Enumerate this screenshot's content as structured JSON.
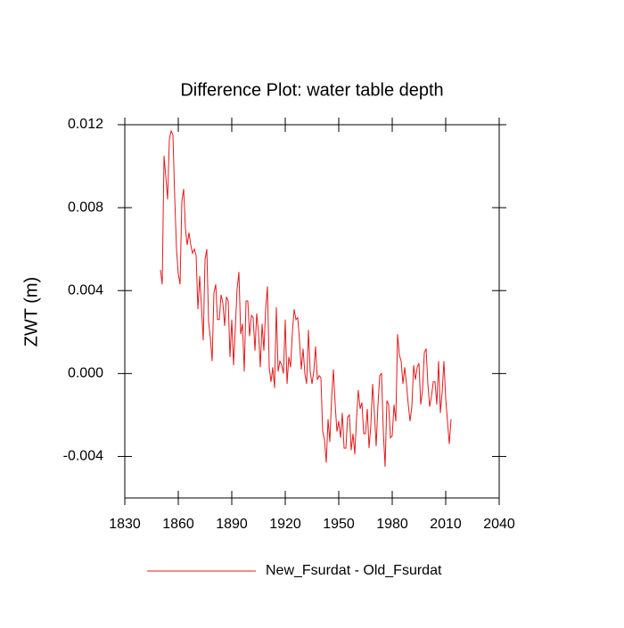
{
  "chart_data": {
    "type": "line",
    "title": "Difference Plot: water table depth",
    "y_label": "ZWT  (m)",
    "x": [
      1850,
      1851,
      1852,
      1853,
      1854,
      1855,
      1856,
      1857,
      1858,
      1859,
      1860,
      1861,
      1862,
      1863,
      1864,
      1865,
      1866,
      1867,
      1868,
      1869,
      1870,
      1871,
      1872,
      1873,
      1874,
      1875,
      1876,
      1877,
      1878,
      1879,
      1880,
      1881,
      1882,
      1883,
      1884,
      1885,
      1886,
      1887,
      1888,
      1889,
      1890,
      1891,
      1892,
      1893,
      1894,
      1895,
      1896,
      1897,
      1898,
      1899,
      1900,
      1901,
      1902,
      1903,
      1904,
      1905,
      1906,
      1907,
      1908,
      1909,
      1910,
      1911,
      1912,
      1913,
      1914,
      1915,
      1916,
      1917,
      1918,
      1919,
      1920,
      1921,
      1922,
      1923,
      1924,
      1925,
      1926,
      1927,
      1928,
      1929,
      1930,
      1931,
      1932,
      1933,
      1934,
      1935,
      1936,
      1937,
      1938,
      1939,
      1940,
      1941,
      1942,
      1943,
      1944,
      1945,
      1946,
      1947,
      1948,
      1949,
      1950,
      1951,
      1952,
      1953,
      1954,
      1955,
      1956,
      1957,
      1958,
      1959,
      1960,
      1961,
      1962,
      1963,
      1964,
      1965,
      1966,
      1967,
      1968,
      1969,
      1970,
      1971,
      1972,
      1973,
      1974,
      1975,
      1976,
      1977,
      1978,
      1979,
      1980,
      1981,
      1982,
      1983,
      1984,
      1985,
      1986,
      1987,
      1988,
      1989,
      1990,
      1991,
      1992,
      1993,
      1994,
      1995,
      1996,
      1997,
      1998,
      1999,
      2000,
      2001,
      2002,
      2003,
      2004,
      2005,
      2006,
      2007,
      2008,
      2009,
      2010,
      2011,
      2012,
      2013
    ],
    "series": [
      {
        "name": "New_Fsurdat - Old_Fsurdat",
        "color": "#e41a1c",
        "values": [
          0.005,
          0.0043,
          0.0105,
          0.0095,
          0.0084,
          0.0113,
          0.0117,
          0.0115,
          0.0085,
          0.006,
          0.0048,
          0.0043,
          0.0083,
          0.0089,
          0.007,
          0.0062,
          0.0068,
          0.0062,
          0.0058,
          0.006,
          0.0057,
          0.0031,
          0.0047,
          0.0032,
          0.0016,
          0.0055,
          0.006,
          0.0025,
          0.0017,
          0.0006,
          0.0039,
          0.0043,
          0.0026,
          0.0026,
          0.0038,
          0.0034,
          0.0023,
          0.0037,
          0.0035,
          0.0008,
          0.0026,
          0.0004,
          0.0022,
          0.0041,
          0.0049,
          0.0019,
          0.0024,
          0.0001,
          0.0035,
          0.0035,
          0.0018,
          0.0028,
          0.0027,
          0.0011,
          0.0029,
          0.002,
          0.0003,
          0.0024,
          0.0011,
          0.0031,
          0.0042,
          0.0003,
          -0.0004,
          0.0003,
          -0.0007,
          0.0032,
          0.0001,
          0.0006,
          0.0004,
          0,
          0.0026,
          -0.0005,
          0.0008,
          0.0003,
          0.002,
          0.0031,
          0.0026,
          0.0027,
          0.0016,
          0.0002,
          0.0012,
          0,
          -0.0005,
          0.0021,
          0.0001,
          -0.0005,
          0.0001,
          0.0013,
          -0.0003,
          -0.0001,
          -0.0002,
          -0.0028,
          -0.0032,
          -0.0043,
          -0.0022,
          -0.0033,
          -0.0012,
          0.0002,
          -0.0015,
          -0.0028,
          -0.0023,
          -0.0031,
          -0.0019,
          -0.0036,
          -0.0036,
          -0.0021,
          -0.002,
          -0.0037,
          -0.0029,
          -0.0039,
          -0.0021,
          -0.0008,
          -0.0017,
          -0.0014,
          -0.0029,
          -0.0029,
          -0.0017,
          -0.0036,
          -0.0025,
          -0.0005,
          -0.0019,
          -0.0035,
          -0.0015,
          -0.0001,
          0,
          -0.0028,
          -0.0045,
          -0.0013,
          -0.0015,
          -0.0031,
          -0.003,
          -0.0015,
          -0.0023,
          0.0019,
          0.0009,
          0.0006,
          -0.0005,
          0.0003,
          -0.0005,
          -0.0015,
          -0.0023,
          -0.0016,
          0.0004,
          -0.0003,
          0.0003,
          0.0005,
          -0.0015,
          -0.0008,
          0.001,
          0.0012,
          -0.0005,
          -0.0016,
          -0.0011,
          -0.0004,
          -0.0004,
          -0.0015,
          0.0006,
          -0.0019,
          -0.0009,
          0.0006,
          -0.0012,
          -0.0023,
          -0.0034,
          -0.0022
        ]
      }
    ],
    "xlim": [
      1830,
      2040
    ],
    "xticks": [
      1830,
      1860,
      1890,
      1920,
      1950,
      1980,
      2010,
      2040
    ],
    "ylim": [
      -0.006,
      0.012
    ],
    "yticks": [
      -0.004,
      {
        "value": 0,
        "label": "0.000"
      },
      0.004,
      0.008,
      0.012
    ],
    "grid": false,
    "legend": "bottom"
  }
}
